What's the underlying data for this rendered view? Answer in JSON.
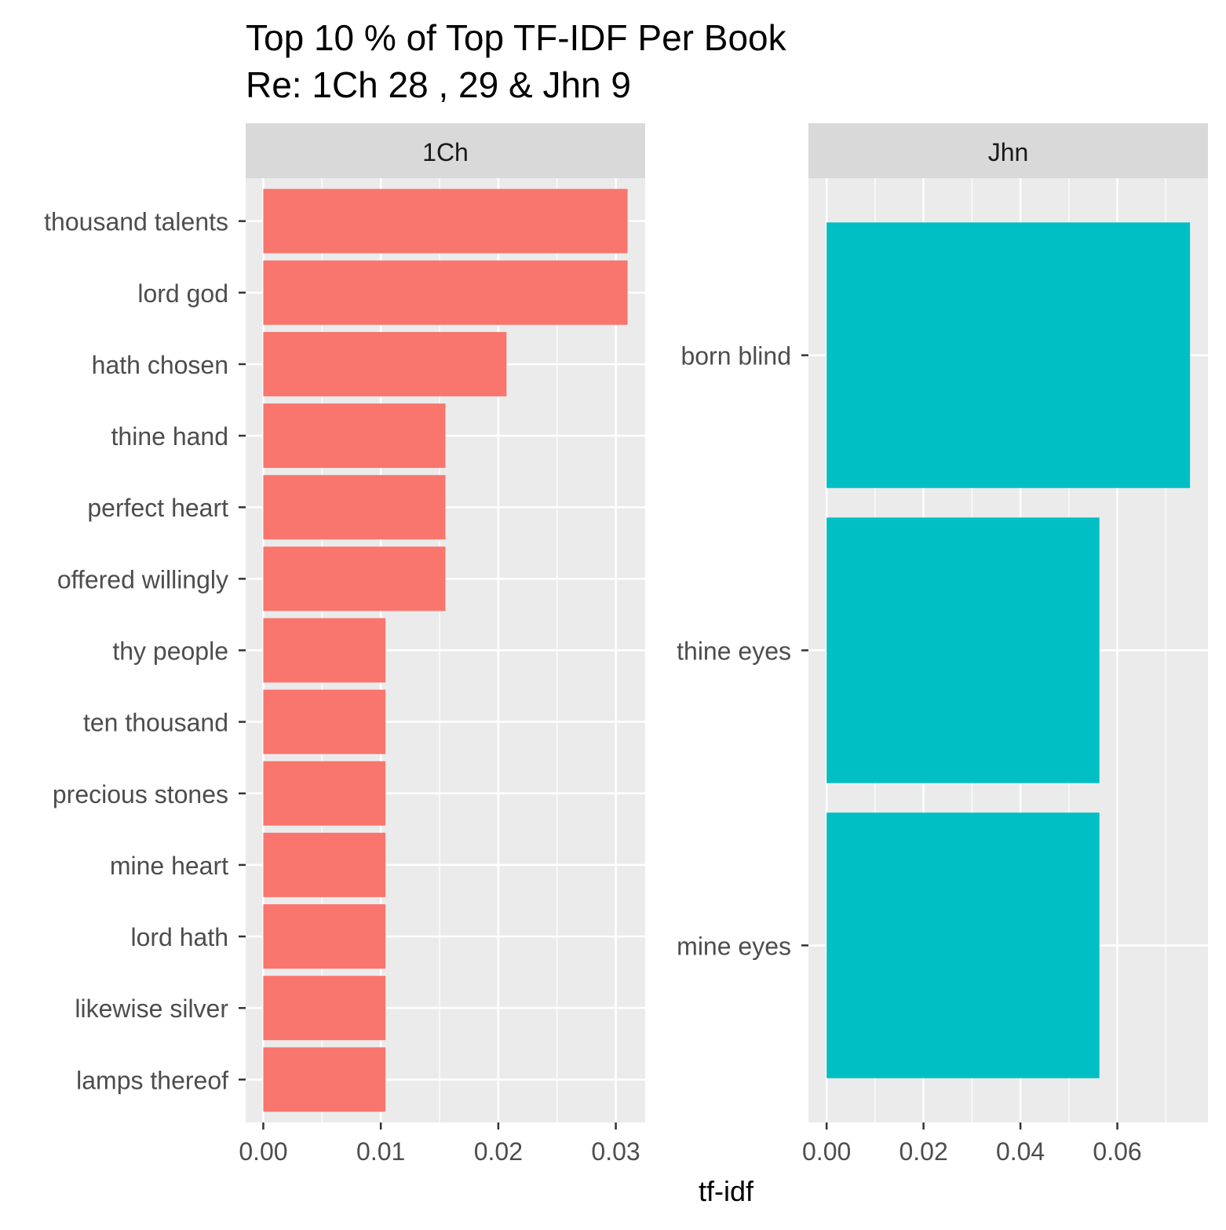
{
  "chart_data": {
    "type": "bar",
    "orientation": "horizontal",
    "title": "Top 10 % of Top TF-IDF Per Book",
    "subtitle": "Re: 1Ch 28 , 29 & Jhn 9",
    "xlabel": "tf-idf",
    "ylabel": "",
    "grid": true,
    "legend": "none",
    "panels": [
      {
        "facet_label": "1Ch",
        "fill_color": "#F8766D",
        "xlim": [
          -0.0015,
          0.0325
        ],
        "x_ticks": [
          0.0,
          0.01,
          0.02,
          0.03
        ],
        "x_tick_labels": [
          "0.00",
          "0.01",
          "0.02",
          "0.03"
        ],
        "categories": [
          "thousand talents",
          "lord god",
          "hath chosen",
          "thine hand",
          "perfect heart",
          "offered willingly",
          "thy people",
          "ten thousand",
          "precious stones",
          "mine heart",
          "lord hath",
          "likewise silver",
          "lamps thereof"
        ],
        "values": [
          0.031,
          0.031,
          0.0207,
          0.0155,
          0.0155,
          0.0155,
          0.0104,
          0.0104,
          0.0104,
          0.0104,
          0.0104,
          0.0104,
          0.0104
        ]
      },
      {
        "facet_label": "Jhn",
        "fill_color": "#00BFC4",
        "xlim": [
          -0.00375,
          0.0787
        ],
        "x_ticks": [
          0.0,
          0.02,
          0.04,
          0.06
        ],
        "x_tick_labels": [
          "0.00",
          "0.02",
          "0.04",
          "0.06"
        ],
        "categories": [
          "born blind",
          "thine eyes",
          "mine eyes"
        ],
        "values": [
          0.075,
          0.0563,
          0.0563
        ]
      }
    ]
  }
}
